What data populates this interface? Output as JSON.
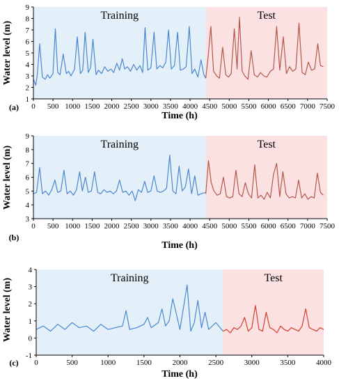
{
  "chart_data": [
    {
      "type": "line",
      "panel_label": "(a)",
      "xlabel": "Time (h)",
      "ylabel": "Water level (m)",
      "xlim": [
        0,
        7500
      ],
      "ylim": [
        1,
        9
      ],
      "xticks": [
        "0",
        "500",
        "1000",
        "1500",
        "2000",
        "2500",
        "3000",
        "3500",
        "4000",
        "4500",
        "5000",
        "5500",
        "6000",
        "6500",
        "7000",
        "7500"
      ],
      "yticks": [
        "1",
        "2",
        "3",
        "4",
        "5",
        "6",
        "7",
        "8",
        "9"
      ],
      "regions": [
        {
          "label": "Training",
          "start": 0,
          "end": 4400,
          "color": "#e3f0fa"
        },
        {
          "label": "Test",
          "start": 4400,
          "end": 7500,
          "color": "#fbe1e1"
        }
      ],
      "series": [
        {
          "color": "#4a86d0",
          "x": [
            0,
            60,
            100,
            160,
            230,
            300,
            360,
            420,
            500,
            560,
            620,
            680,
            760,
            840,
            900,
            960,
            1050,
            1120,
            1200,
            1260,
            1320,
            1400,
            1460,
            1520,
            1600,
            1660,
            1740,
            1820,
            1900,
            1980,
            2050,
            2130,
            2200,
            2270,
            2330,
            2400,
            2480,
            2560,
            2640,
            2720,
            2790,
            2850,
            2920,
            3000,
            3080,
            3150,
            3230,
            3300,
            3380,
            3450,
            3520,
            3600,
            3680,
            3750,
            3830,
            3900,
            3980,
            4050,
            4120,
            4200,
            4280,
            4350,
            4400
          ],
          "y": [
            2.7,
            2.2,
            3.1,
            5.8,
            2.9,
            2.7,
            3.1,
            2.8,
            3.2,
            7.1,
            3.3,
            3.1,
            4.9,
            3.2,
            3.4,
            3.0,
            3.6,
            6.4,
            3.2,
            3.5,
            6.8,
            3.3,
            3.7,
            6.2,
            3.1,
            3.5,
            3.2,
            3.8,
            3.4,
            3.6,
            3.3,
            4.1,
            3.5,
            4.5,
            3.6,
            3.8,
            3.4,
            4.0,
            3.5,
            3.9,
            3.3,
            7.2,
            3.5,
            3.7,
            6.8,
            3.6,
            3.9,
            3.7,
            4.2,
            7.0,
            3.6,
            3.9,
            6.8,
            3.5,
            3.6,
            3.8,
            7.3,
            3.2,
            3.6,
            2.9,
            4.4,
            3.1,
            2.8
          ]
        },
        {
          "color": "#b5564a",
          "x": [
            4400,
            4460,
            4530,
            4600,
            4680,
            4750,
            4830,
            4910,
            4980,
            5050,
            5130,
            5200,
            5260,
            5330,
            5400,
            5480,
            5560,
            5640,
            5720,
            5800,
            5880,
            5960,
            6050,
            6130,
            6210,
            6290,
            6380,
            6460,
            6540,
            6620,
            6700,
            6780,
            6860,
            6940,
            7020,
            7100,
            7180,
            7260,
            7330,
            7400
          ],
          "y": [
            2.8,
            4.6,
            7.3,
            3.4,
            3.0,
            2.8,
            5.5,
            3.1,
            2.9,
            3.2,
            7.1,
            3.6,
            8.1,
            3.4,
            3.0,
            2.7,
            5.2,
            3.1,
            2.9,
            3.3,
            3.0,
            2.9,
            3.4,
            3.6,
            7.3,
            3.5,
            6.4,
            3.2,
            3.8,
            3.4,
            3.6,
            7.6,
            3.3,
            3.1,
            4.2,
            3.5,
            3.6,
            5.8,
            3.9,
            3.8
          ]
        }
      ]
    },
    {
      "type": "line",
      "panel_label": "(b)",
      "xlabel": "Time (h)",
      "ylabel": "Water level (m)",
      "xlim": [
        0,
        7500
      ],
      "ylim": [
        3,
        9
      ],
      "xticks": [
        "0",
        "500",
        "1000",
        "1500",
        "2000",
        "2500",
        "3000",
        "3500",
        "4000",
        "4500",
        "5000",
        "5500",
        "6000",
        "6500",
        "7000",
        "7500"
      ],
      "yticks": [
        "3",
        "4",
        "5",
        "6",
        "7",
        "8",
        "9"
      ],
      "regions": [
        {
          "label": "Training",
          "start": 0,
          "end": 4400,
          "color": "#e3f0fa"
        },
        {
          "label": "Test",
          "start": 4400,
          "end": 7500,
          "color": "#fbe1e1"
        }
      ],
      "series": [
        {
          "color": "#4a86d0",
          "x": [
            0,
            80,
            160,
            230,
            310,
            390,
            470,
            550,
            620,
            700,
            780,
            860,
            940,
            1020,
            1100,
            1180,
            1250,
            1330,
            1400,
            1480,
            1560,
            1640,
            1720,
            1800,
            1880,
            1960,
            2040,
            2120,
            2200,
            2280,
            2360,
            2440,
            2520,
            2600,
            2680,
            2760,
            2840,
            2920,
            3000,
            3080,
            3160,
            3240,
            3320,
            3400,
            3480,
            3560,
            3640,
            3720,
            3800,
            3880,
            3960,
            4040,
            4120,
            4200,
            4280,
            4400
          ],
          "y": [
            4.8,
            4.9,
            6.7,
            4.8,
            5.0,
            4.7,
            5.1,
            5.8,
            4.9,
            5.0,
            6.5,
            4.8,
            5.0,
            4.7,
            5.1,
            6.4,
            5.0,
            6.0,
            4.9,
            5.0,
            6.4,
            4.9,
            4.8,
            5.1,
            4.9,
            5.0,
            4.8,
            5.0,
            5.8,
            4.9,
            5.0,
            4.7,
            5.0,
            4.3,
            5.1,
            4.9,
            5.7,
            4.9,
            5.0,
            6.1,
            5.0,
            4.9,
            5.0,
            5.2,
            7.6,
            5.0,
            4.8,
            6.8,
            5.0,
            5.3,
            6.6,
            4.8,
            6.1,
            4.7,
            4.8,
            4.9
          ]
        },
        {
          "color": "#b5564a",
          "x": [
            4400,
            4470,
            4540,
            4610,
            4690,
            4770,
            4850,
            4930,
            5010,
            5090,
            5170,
            5250,
            5330,
            5410,
            5490,
            5570,
            5650,
            5730,
            5810,
            5890,
            5970,
            6050,
            6130,
            6210,
            6290,
            6370,
            6450,
            6530,
            6610,
            6690,
            6770,
            6850,
            6930,
            7010,
            7090,
            7170,
            7250,
            7330,
            7400
          ],
          "y": [
            4.8,
            7.2,
            5.6,
            5.0,
            4.7,
            4.8,
            6.0,
            4.6,
            4.5,
            4.6,
            6.5,
            4.8,
            4.6,
            5.6,
            4.8,
            4.5,
            6.9,
            4.5,
            4.7,
            4.4,
            4.9,
            4.5,
            6.2,
            7.0,
            4.6,
            6.4,
            4.8,
            4.5,
            4.6,
            4.5,
            5.8,
            4.5,
            4.8,
            4.4,
            4.6,
            4.5,
            6.3,
            4.9,
            4.7
          ]
        }
      ]
    },
    {
      "type": "line",
      "panel_label": "(c)",
      "xlabel": "Time (h)",
      "ylabel": "Water level (m)",
      "xlim": [
        0,
        4000
      ],
      "ylim": [
        -1,
        4
      ],
      "xticks": [
        "0",
        "500",
        "1000",
        "1500",
        "2000",
        "2500",
        "3000",
        "3500",
        "4000"
      ],
      "yticks": [
        "-1",
        "0",
        "1",
        "2",
        "3",
        "4"
      ],
      "regions": [
        {
          "label": "Training",
          "start": 0,
          "end": 2600,
          "color": "#e3f0fa"
        },
        {
          "label": "Test",
          "start": 2600,
          "end": 4000,
          "color": "#fbe1e1"
        }
      ],
      "series": [
        {
          "color": "#4a86d0",
          "x": [
            0,
            100,
            200,
            300,
            400,
            500,
            600,
            700,
            800,
            900,
            1000,
            1100,
            1200,
            1250,
            1300,
            1400,
            1500,
            1550,
            1600,
            1700,
            1750,
            1800,
            1850,
            1900,
            2000,
            2050,
            2100,
            2150,
            2200,
            2250,
            2300,
            2350,
            2400,
            2500,
            2600
          ],
          "y": [
            0.5,
            0.7,
            0.4,
            0.8,
            0.5,
            0.9,
            0.6,
            0.7,
            0.4,
            0.8,
            0.5,
            0.6,
            0.7,
            1.6,
            0.5,
            0.6,
            0.8,
            1.2,
            0.6,
            0.9,
            1.7,
            0.7,
            1.0,
            2.3,
            0.5,
            1.8,
            3.1,
            0.4,
            0.9,
            2.2,
            0.6,
            1.5,
            0.5,
            0.9,
            0.4
          ]
        },
        {
          "color": "#d63c2c",
          "x": [
            2600,
            2650,
            2700,
            2750,
            2800,
            2850,
            2900,
            2950,
            3000,
            3050,
            3100,
            3150,
            3200,
            3250,
            3300,
            3350,
            3400,
            3450,
            3500,
            3550,
            3600,
            3650,
            3700,
            3750,
            3800,
            3850,
            3900,
            3950,
            4000
          ],
          "y": [
            0.4,
            0.5,
            0.3,
            0.6,
            0.5,
            0.7,
            1.2,
            0.4,
            0.6,
            1.9,
            0.5,
            0.4,
            1.5,
            0.6,
            0.5,
            0.3,
            0.7,
            0.5,
            0.4,
            0.6,
            0.5,
            0.4,
            0.7,
            1.7,
            0.6,
            0.5,
            0.4,
            0.6,
            0.5
          ]
        }
      ]
    }
  ]
}
